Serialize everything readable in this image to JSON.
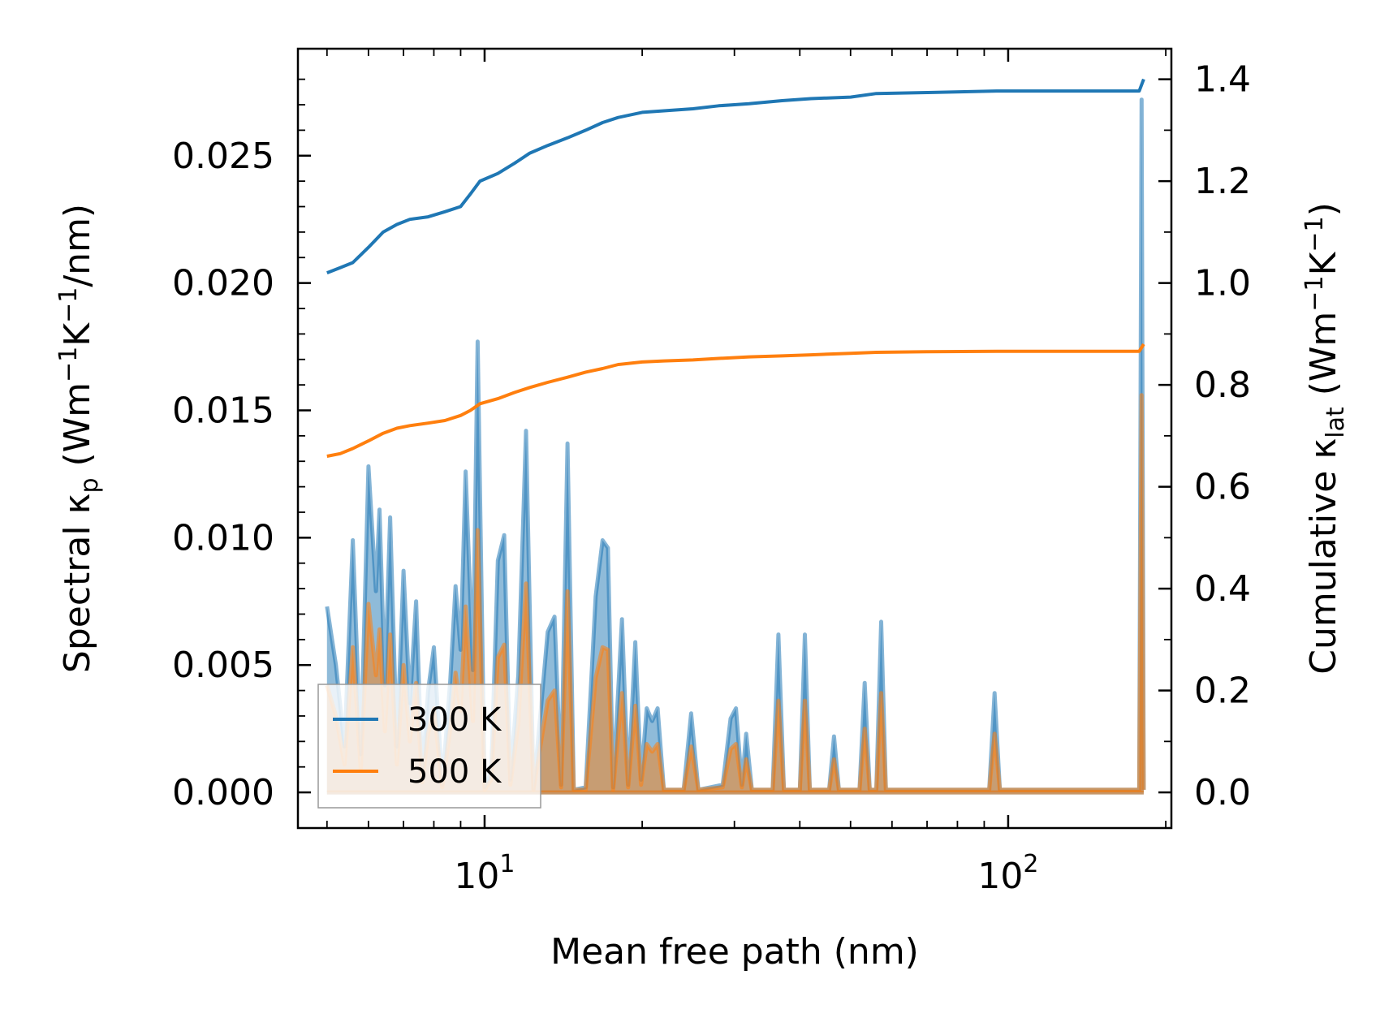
{
  "chart_data": {
    "type": "line",
    "x_scale": "log",
    "xlabel": "Mean free path (nm)",
    "ylabel_left": {
      "text": "Spectral κ",
      "sub": "p",
      "unit_pre": " (Wm",
      "sup1": "−1",
      "mid": "K",
      "sup2": "−1",
      "post": "/nm)"
    },
    "ylabel_right": {
      "text": "Cumulative κ",
      "sub": "lat",
      "unit_pre": " (Wm",
      "sup1": "−1",
      "mid": "K",
      "sup2": "−1",
      "post": ")"
    },
    "xlim": [
      4.4,
      205
    ],
    "ylim_left": [
      -0.0014,
      0.0292
    ],
    "ylim_right": [
      -0.07,
      1.46
    ],
    "x_ticks": [
      {
        "value": 10,
        "base": "10",
        "exp": "1"
      },
      {
        "value": 100,
        "base": "10",
        "exp": "2"
      }
    ],
    "y_left_ticks": [
      {
        "value": 0.0,
        "label": "0.000"
      },
      {
        "value": 0.005,
        "label": "0.005"
      },
      {
        "value": 0.01,
        "label": "0.010"
      },
      {
        "value": 0.015,
        "label": "0.015"
      },
      {
        "value": 0.02,
        "label": "0.020"
      },
      {
        "value": 0.025,
        "label": "0.025"
      }
    ],
    "y_right_ticks": [
      {
        "value": 0.0,
        "label": "0.0"
      },
      {
        "value": 0.2,
        "label": "0.2"
      },
      {
        "value": 0.4,
        "label": "0.4"
      },
      {
        "value": 0.6,
        "label": "0.6"
      },
      {
        "value": 0.8,
        "label": "0.8"
      },
      {
        "value": 1.0,
        "label": "1.0"
      },
      {
        "value": 1.2,
        "label": "1.2"
      },
      {
        "value": 1.4,
        "label": "1.4"
      }
    ],
    "legend": {
      "position": "lower-left",
      "entries": [
        {
          "name": "300 K",
          "color": "#1f77b4"
        },
        {
          "name": "500 K",
          "color": "#ff7f0e"
        }
      ]
    },
    "spectral_series": [
      {
        "name": "300 K",
        "color": "#1f77b4",
        "axis": "left",
        "points": [
          [
            5.0,
            0.0073
          ],
          [
            5.2,
            0.005
          ],
          [
            5.4,
            0.0018
          ],
          [
            5.6,
            0.0099
          ],
          [
            5.8,
            0.0015
          ],
          [
            6.0,
            0.0128
          ],
          [
            6.2,
            0.0079
          ],
          [
            6.3,
            0.0111
          ],
          [
            6.45,
            0.0042
          ],
          [
            6.6,
            0.0108
          ],
          [
            6.8,
            0.0018
          ],
          [
            7.0,
            0.0087
          ],
          [
            7.2,
            0.0035
          ],
          [
            7.4,
            0.0075
          ],
          [
            7.6,
            0.0006
          ],
          [
            7.8,
            0.004
          ],
          [
            8.0,
            0.0057
          ],
          [
            8.3,
            0.0003
          ],
          [
            8.6,
            0.0044
          ],
          [
            8.8,
            0.0081
          ],
          [
            9.0,
            0.0056
          ],
          [
            9.2,
            0.0126
          ],
          [
            9.5,
            0.0048
          ],
          [
            9.7,
            0.0177
          ],
          [
            10.0,
            0.0002
          ],
          [
            10.3,
            0.0008
          ],
          [
            10.6,
            0.0091
          ],
          [
            10.9,
            0.0101
          ],
          [
            11.2,
            0.0005
          ],
          [
            11.6,
            0.0046
          ],
          [
            12.0,
            0.0142
          ],
          [
            12.4,
            0.0001
          ],
          [
            12.8,
            0.0032
          ],
          [
            13.2,
            0.0063
          ],
          [
            13.6,
            0.0069
          ],
          [
            14.0,
            0.0003
          ],
          [
            14.4,
            0.0137
          ],
          [
            14.8,
            0.0001
          ],
          [
            15.6,
            0.0002
          ],
          [
            16.3,
            0.0077
          ],
          [
            16.8,
            0.0099
          ],
          [
            17.2,
            0.0096
          ],
          [
            17.6,
            0.0002
          ],
          [
            18.3,
            0.0068
          ],
          [
            18.8,
            0.0003
          ],
          [
            19.4,
            0.0059
          ],
          [
            19.9,
            0.0005
          ],
          [
            20.4,
            0.0033
          ],
          [
            20.9,
            0.0028
          ],
          [
            21.4,
            0.0033
          ],
          [
            22.0,
            0.0001
          ],
          [
            24.0,
            0.0001
          ],
          [
            24.8,
            0.0031
          ],
          [
            25.6,
            0.0001
          ],
          [
            28.5,
            0.0003
          ],
          [
            29.5,
            0.0029
          ],
          [
            30.2,
            0.0033
          ],
          [
            31.0,
            0.0003
          ],
          [
            31.6,
            0.0023
          ],
          [
            32.4,
            0.0001
          ],
          [
            35.5,
            0.0001
          ],
          [
            36.4,
            0.0062
          ],
          [
            37.3,
            0.0001
          ],
          [
            40.0,
            0.0001
          ],
          [
            40.9,
            0.0062
          ],
          [
            41.8,
            0.0001
          ],
          [
            45.5,
            0.0001
          ],
          [
            46.5,
            0.0022
          ],
          [
            47.5,
            0.0001
          ],
          [
            52.0,
            0.0001
          ],
          [
            53.2,
            0.0043
          ],
          [
            54.4,
            0.0001
          ],
          [
            56.0,
            0.0001
          ],
          [
            57.2,
            0.0067
          ],
          [
            58.4,
            0.0001
          ],
          [
            92.0,
            0.0001
          ],
          [
            94.2,
            0.0039
          ],
          [
            96.4,
            0.0001
          ],
          [
            178.0,
            0.0001
          ],
          [
            179.8,
            0.0272
          ],
          [
            181.5,
            0.0001
          ]
        ]
      },
      {
        "name": "500 K",
        "color": "#ff7f0e",
        "axis": "left",
        "points": [
          [
            5.0,
            0.0042
          ],
          [
            5.2,
            0.003
          ],
          [
            5.4,
            0.0011
          ],
          [
            5.6,
            0.0057
          ],
          [
            5.8,
            0.0009
          ],
          [
            6.0,
            0.0074
          ],
          [
            6.2,
            0.0046
          ],
          [
            6.3,
            0.0064
          ],
          [
            6.45,
            0.0024
          ],
          [
            6.6,
            0.0062
          ],
          [
            6.8,
            0.0011
          ],
          [
            7.0,
            0.005
          ],
          [
            7.2,
            0.002
          ],
          [
            7.4,
            0.0043
          ],
          [
            7.6,
            0.0004
          ],
          [
            7.8,
            0.0023
          ],
          [
            8.0,
            0.0033
          ],
          [
            8.3,
            0.0002
          ],
          [
            8.6,
            0.0025
          ],
          [
            8.8,
            0.0047
          ],
          [
            9.0,
            0.0032
          ],
          [
            9.2,
            0.0073
          ],
          [
            9.5,
            0.0028
          ],
          [
            9.7,
            0.0103
          ],
          [
            10.0,
            0.0001
          ],
          [
            10.3,
            0.0005
          ],
          [
            10.6,
            0.0053
          ],
          [
            10.9,
            0.0058
          ],
          [
            11.2,
            0.0003
          ],
          [
            11.6,
            0.0027
          ],
          [
            12.0,
            0.0082
          ],
          [
            12.4,
            0.0001
          ],
          [
            12.8,
            0.0019
          ],
          [
            13.2,
            0.0036
          ],
          [
            13.6,
            0.004
          ],
          [
            14.0,
            0.0002
          ],
          [
            14.4,
            0.0079
          ],
          [
            14.8,
            0.0001
          ],
          [
            15.6,
            0.0001
          ],
          [
            16.3,
            0.0045
          ],
          [
            16.8,
            0.0057
          ],
          [
            17.2,
            0.0056
          ],
          [
            17.6,
            0.0001
          ],
          [
            18.3,
            0.0039
          ],
          [
            18.8,
            0.0002
          ],
          [
            19.4,
            0.0034
          ],
          [
            19.9,
            0.0003
          ],
          [
            20.4,
            0.0019
          ],
          [
            20.9,
            0.0016
          ],
          [
            21.4,
            0.0019
          ],
          [
            22.0,
            0.0001
          ],
          [
            24.0,
            0.0001
          ],
          [
            24.8,
            0.0018
          ],
          [
            25.6,
            0.0001
          ],
          [
            28.5,
            0.0002
          ],
          [
            29.5,
            0.0017
          ],
          [
            30.2,
            0.0019
          ],
          [
            31.0,
            0.0002
          ],
          [
            31.6,
            0.0013
          ],
          [
            32.4,
            0.0001
          ],
          [
            35.5,
            0.0001
          ],
          [
            36.4,
            0.0036
          ],
          [
            37.3,
            0.0001
          ],
          [
            40.0,
            0.0001
          ],
          [
            40.9,
            0.0036
          ],
          [
            41.8,
            0.0001
          ],
          [
            45.5,
            0.0001
          ],
          [
            46.5,
            0.0013
          ],
          [
            47.5,
            0.0001
          ],
          [
            52.0,
            0.0001
          ],
          [
            53.2,
            0.0025
          ],
          [
            54.4,
            0.0001
          ],
          [
            56.0,
            0.0001
          ],
          [
            57.2,
            0.0039
          ],
          [
            58.4,
            0.0001
          ],
          [
            92.0,
            0.0001
          ],
          [
            94.2,
            0.0023
          ],
          [
            96.4,
            0.0001
          ],
          [
            178.0,
            0.0001
          ],
          [
            179.8,
            0.0156
          ],
          [
            181.5,
            0.0001
          ]
        ]
      }
    ],
    "cumulative_series": [
      {
        "name": "300 K",
        "color": "#1f77b4",
        "axis": "right",
        "points": [
          [
            5.0,
            1.02
          ],
          [
            5.3,
            1.03
          ],
          [
            5.6,
            1.04
          ],
          [
            6.0,
            1.07
          ],
          [
            6.4,
            1.1
          ],
          [
            6.8,
            1.115
          ],
          [
            7.2,
            1.125
          ],
          [
            7.8,
            1.13
          ],
          [
            8.4,
            1.14
          ],
          [
            9.0,
            1.15
          ],
          [
            9.4,
            1.175
          ],
          [
            9.8,
            1.2
          ],
          [
            10.6,
            1.215
          ],
          [
            11.4,
            1.235
          ],
          [
            12.2,
            1.255
          ],
          [
            13.2,
            1.27
          ],
          [
            14.4,
            1.285
          ],
          [
            15.6,
            1.3
          ],
          [
            16.8,
            1.315
          ],
          [
            18.0,
            1.325
          ],
          [
            20.0,
            1.335
          ],
          [
            22.0,
            1.338
          ],
          [
            25.0,
            1.342
          ],
          [
            28.0,
            1.348
          ],
          [
            32.0,
            1.352
          ],
          [
            37.0,
            1.358
          ],
          [
            42.0,
            1.362
          ],
          [
            50.0,
            1.365
          ],
          [
            56.0,
            1.372
          ],
          [
            70.0,
            1.374
          ],
          [
            95.0,
            1.377
          ],
          [
            130.0,
            1.377
          ],
          [
            178.0,
            1.377
          ],
          [
            181.5,
            1.4
          ]
        ]
      },
      {
        "name": "500 K",
        "color": "#ff7f0e",
        "axis": "right",
        "points": [
          [
            5.0,
            0.66
          ],
          [
            5.3,
            0.665
          ],
          [
            5.6,
            0.675
          ],
          [
            6.0,
            0.69
          ],
          [
            6.4,
            0.705
          ],
          [
            6.8,
            0.715
          ],
          [
            7.2,
            0.72
          ],
          [
            7.8,
            0.725
          ],
          [
            8.4,
            0.73
          ],
          [
            9.0,
            0.74
          ],
          [
            9.4,
            0.75
          ],
          [
            9.8,
            0.763
          ],
          [
            10.6,
            0.773
          ],
          [
            11.4,
            0.785
          ],
          [
            12.2,
            0.795
          ],
          [
            13.2,
            0.805
          ],
          [
            14.4,
            0.815
          ],
          [
            15.6,
            0.825
          ],
          [
            16.8,
            0.832
          ],
          [
            18.0,
            0.84
          ],
          [
            20.0,
            0.845
          ],
          [
            22.0,
            0.847
          ],
          [
            25.0,
            0.849
          ],
          [
            28.0,
            0.852
          ],
          [
            32.0,
            0.855
          ],
          [
            37.0,
            0.857
          ],
          [
            42.0,
            0.859
          ],
          [
            50.0,
            0.862
          ],
          [
            56.0,
            0.864
          ],
          [
            70.0,
            0.865
          ],
          [
            95.0,
            0.866
          ],
          [
            130.0,
            0.866
          ],
          [
            178.0,
            0.866
          ],
          [
            181.5,
            0.88
          ]
        ]
      }
    ]
  }
}
